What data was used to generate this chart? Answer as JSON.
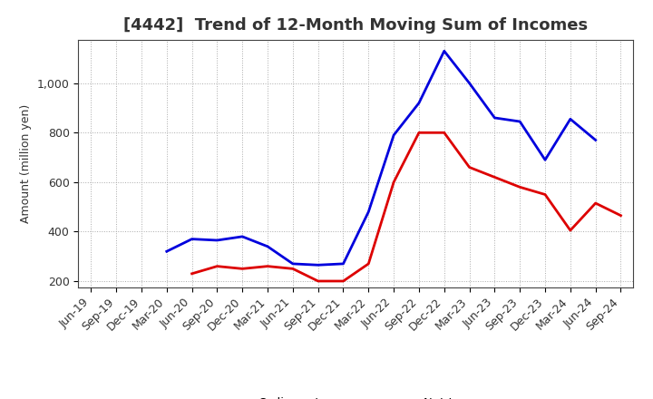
{
  "title": "[4442]  Trend of 12-Month Moving Sum of Incomes",
  "ylabel": "Amount (million yen)",
  "x_labels": [
    "Jun-19",
    "Sep-19",
    "Dec-19",
    "Mar-20",
    "Jun-20",
    "Sep-20",
    "Dec-20",
    "Mar-21",
    "Jun-21",
    "Sep-21",
    "Dec-21",
    "Mar-22",
    "Jun-22",
    "Sep-22",
    "Dec-22",
    "Mar-23",
    "Jun-23",
    "Sep-23",
    "Dec-23",
    "Mar-24",
    "Jun-24",
    "Sep-24"
  ],
  "ordinary_income": [
    null,
    null,
    null,
    320,
    370,
    365,
    380,
    340,
    270,
    265,
    270,
    480,
    790,
    920,
    1130,
    1000,
    860,
    845,
    690,
    855,
    770,
    null
  ],
  "net_income": [
    null,
    null,
    null,
    null,
    230,
    260,
    250,
    260,
    250,
    200,
    200,
    270,
    600,
    800,
    800,
    660,
    620,
    580,
    550,
    405,
    515,
    465
  ],
  "ordinary_income_color": "#0000dd",
  "net_income_color": "#dd0000",
  "ylim": [
    175,
    1175
  ],
  "yticks": [
    200,
    400,
    600,
    800,
    1000
  ],
  "ytick_labels": [
    "200",
    "400",
    "600",
    "800",
    "1,000"
  ],
  "background_color": "#ffffff",
  "grid_color": "#aaaaaa",
  "line_width": 2.0,
  "title_color": "#333333",
  "title_fontsize": 13,
  "axis_label_fontsize": 9,
  "tick_fontsize": 9
}
